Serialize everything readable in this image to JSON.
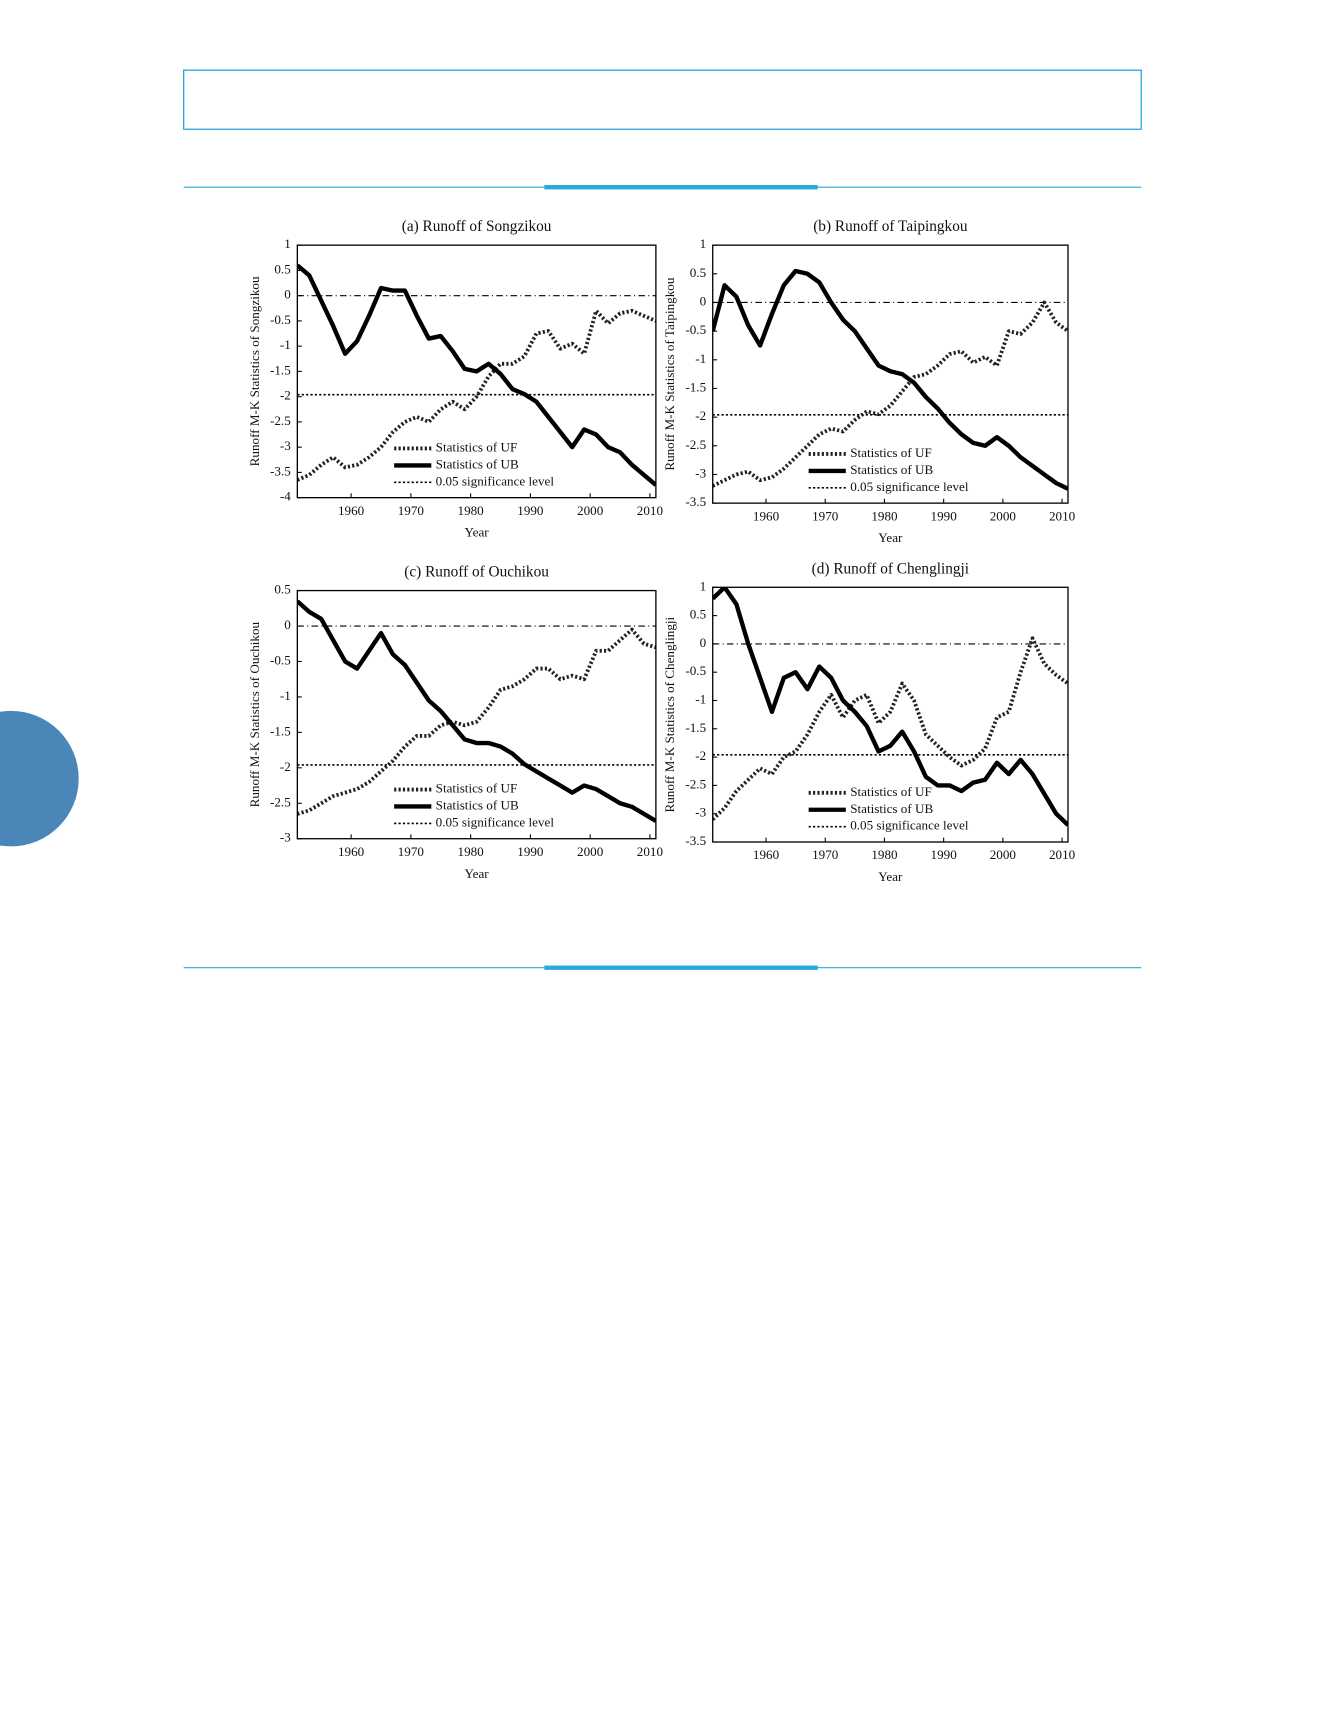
{
  "chart_data": [
    {
      "type": "line",
      "title": "(a) Runoff of Songzikou",
      "xlabel": "Year",
      "ylabel": "Runoff M-K Statistics of Songzikou",
      "x": [
        1951,
        1953,
        1955,
        1957,
        1959,
        1961,
        1963,
        1965,
        1967,
        1969,
        1971,
        1973,
        1975,
        1977,
        1979,
        1981,
        1983,
        1985,
        1987,
        1989,
        1991,
        1993,
        1995,
        1997,
        1999,
        2001,
        2003,
        2005,
        2007,
        2009,
        2011
      ],
      "series": [
        {
          "name": "Statistics of UF",
          "color": "#222222",
          "style": "dotted",
          "values": [
            -3.65,
            -3.55,
            -3.35,
            -3.2,
            -3.4,
            -3.35,
            -3.2,
            -3.0,
            -2.7,
            -2.5,
            -2.4,
            -2.5,
            -2.25,
            -2.1,
            -2.25,
            -2.0,
            -1.6,
            -1.35,
            -1.35,
            -1.2,
            -0.75,
            -0.7,
            -1.05,
            -0.95,
            -1.15,
            -0.3,
            -0.55,
            -0.35,
            -0.3,
            -0.4,
            -0.5
          ]
        },
        {
          "name": "Statistics of UB",
          "color": "#000000",
          "style": "solid",
          "values": [
            0.6,
            0.4,
            -0.1,
            -0.6,
            -1.15,
            -0.9,
            -0.4,
            0.15,
            0.1,
            0.1,
            -0.4,
            -0.85,
            -0.8,
            -1.1,
            -1.45,
            -1.5,
            -1.35,
            -1.55,
            -1.85,
            -1.95,
            -2.1,
            -2.4,
            -2.7,
            -3.0,
            -2.65,
            -2.75,
            -3.0,
            -3.1,
            -3.35,
            -3.55,
            -3.75
          ]
        }
      ],
      "hlines": [
        {
          "name": "0.05 significance level",
          "value": -1.96,
          "style": "dotted"
        },
        {
          "value": 0,
          "style": "dashdot"
        }
      ],
      "xlim": [
        1951,
        2011
      ],
      "ylim": [
        -4,
        1
      ],
      "xticks": [
        1960,
        1970,
        1980,
        1990,
        2000,
        2010
      ],
      "yticks": [
        1,
        0.5,
        0,
        -0.5,
        -1,
        -1.5,
        -2,
        -2.5,
        -3,
        -3.5,
        -4
      ],
      "legend": "lower center"
    },
    {
      "type": "line",
      "title": "(b) Runoff of Taipingkou",
      "xlabel": "Year",
      "ylabel": "Runoff M-K Statistics of Taipingkou",
      "x": [
        1951,
        1953,
        1955,
        1957,
        1959,
        1961,
        1963,
        1965,
        1967,
        1969,
        1971,
        1973,
        1975,
        1977,
        1979,
        1981,
        1983,
        1985,
        1987,
        1989,
        1991,
        1993,
        1995,
        1997,
        1999,
        2001,
        2003,
        2005,
        2007,
        2009,
        2011
      ],
      "series": [
        {
          "name": "Statistics of UF",
          "color": "#222222",
          "style": "dotted",
          "values": [
            -3.2,
            -3.1,
            -3.0,
            -2.95,
            -3.1,
            -3.05,
            -2.9,
            -2.7,
            -2.5,
            -2.3,
            -2.2,
            -2.25,
            -2.05,
            -1.9,
            -1.95,
            -1.8,
            -1.55,
            -1.3,
            -1.25,
            -1.1,
            -0.9,
            -0.85,
            -1.05,
            -0.95,
            -1.1,
            -0.5,
            -0.55,
            -0.35,
            0.0,
            -0.35,
            -0.5
          ]
        },
        {
          "name": "Statistics of UB",
          "color": "#000000",
          "style": "solid",
          "values": [
            -0.5,
            0.3,
            0.1,
            -0.4,
            -0.75,
            -0.2,
            0.3,
            0.55,
            0.5,
            0.35,
            0.0,
            -0.3,
            -0.5,
            -0.8,
            -1.1,
            -1.2,
            -1.25,
            -1.4,
            -1.65,
            -1.85,
            -2.1,
            -2.3,
            -2.45,
            -2.5,
            -2.35,
            -2.5,
            -2.7,
            -2.85,
            -3.0,
            -3.15,
            -3.25
          ]
        }
      ],
      "hlines": [
        {
          "name": "0.05 significance level",
          "value": -1.96,
          "style": "dotted"
        },
        {
          "value": 0,
          "style": "dashdot"
        }
      ],
      "xlim": [
        1951,
        2011
      ],
      "ylim": [
        -3.5,
        1
      ],
      "xticks": [
        1960,
        1970,
        1980,
        1990,
        2000,
        2010
      ],
      "yticks": [
        1,
        0.5,
        0,
        -0.5,
        -1,
        -1.5,
        -2,
        -2.5,
        -3,
        -3.5
      ],
      "legend": "lower center"
    },
    {
      "type": "line",
      "title": "(c) Runoff of Ouchikou",
      "xlabel": "Year",
      "ylabel": "Runoff M-K Statistics of Ouchikou",
      "x": [
        1951,
        1953,
        1955,
        1957,
        1959,
        1961,
        1963,
        1965,
        1967,
        1969,
        1971,
        1973,
        1975,
        1977,
        1979,
        1981,
        1983,
        1985,
        1987,
        1989,
        1991,
        1993,
        1995,
        1997,
        1999,
        2001,
        2003,
        2005,
        2007,
        2009,
        2011
      ],
      "series": [
        {
          "name": "Statistics of UF",
          "color": "#222222",
          "style": "dotted",
          "values": [
            -2.65,
            -2.6,
            -2.5,
            -2.4,
            -2.35,
            -2.3,
            -2.2,
            -2.05,
            -1.9,
            -1.7,
            -1.55,
            -1.55,
            -1.4,
            -1.35,
            -1.4,
            -1.35,
            -1.15,
            -0.9,
            -0.85,
            -0.75,
            -0.6,
            -0.6,
            -0.75,
            -0.7,
            -0.75,
            -0.35,
            -0.35,
            -0.2,
            -0.05,
            -0.25,
            -0.3
          ]
        },
        {
          "name": "Statistics of UB",
          "color": "#000000",
          "style": "solid",
          "values": [
            0.35,
            0.2,
            0.1,
            -0.2,
            -0.5,
            -0.6,
            -0.35,
            -0.1,
            -0.4,
            -0.55,
            -0.8,
            -1.05,
            -1.2,
            -1.4,
            -1.6,
            -1.65,
            -1.65,
            -1.7,
            -1.8,
            -1.95,
            -2.05,
            -2.15,
            -2.25,
            -2.35,
            -2.25,
            -2.3,
            -2.4,
            -2.5,
            -2.55,
            -2.65,
            -2.75
          ]
        }
      ],
      "hlines": [
        {
          "name": "0.05 significance level",
          "value": -1.96,
          "style": "dotted"
        },
        {
          "value": 0,
          "style": "dashdot"
        }
      ],
      "xlim": [
        1951,
        2011
      ],
      "ylim": [
        -3,
        0.5
      ],
      "xticks": [
        1960,
        1970,
        1980,
        1990,
        2000,
        2010
      ],
      "yticks": [
        0.5,
        0,
        -0.5,
        -1,
        -1.5,
        -2,
        -2.5,
        -3
      ],
      "legend": "lower center"
    },
    {
      "type": "line",
      "title": "(d) Runoff of Chenglingji",
      "xlabel": "Year",
      "ylabel": "Runoff M-K Statistics of Chenglingji",
      "x": [
        1951,
        1953,
        1955,
        1957,
        1959,
        1961,
        1963,
        1965,
        1967,
        1969,
        1971,
        1973,
        1975,
        1977,
        1979,
        1981,
        1983,
        1985,
        1987,
        1989,
        1991,
        1993,
        1995,
        1997,
        1999,
        2001,
        2003,
        2005,
        2007,
        2009,
        2011
      ],
      "series": [
        {
          "name": "Statistics of UF",
          "color": "#222222",
          "style": "dotted",
          "values": [
            -3.1,
            -2.9,
            -2.6,
            -2.4,
            -2.2,
            -2.3,
            -2.0,
            -1.9,
            -1.6,
            -1.2,
            -0.9,
            -1.3,
            -1.0,
            -0.9,
            -1.4,
            -1.2,
            -0.7,
            -1.0,
            -1.6,
            -1.8,
            -2.0,
            -2.15,
            -2.05,
            -1.85,
            -1.3,
            -1.2,
            -0.5,
            0.1,
            -0.35,
            -0.55,
            -0.7
          ]
        },
        {
          "name": "Statistics of UB",
          "color": "#000000",
          "style": "solid",
          "values": [
            0.8,
            1.0,
            0.7,
            0.0,
            -0.6,
            -1.2,
            -0.6,
            -0.5,
            -0.8,
            -0.4,
            -0.6,
            -1.0,
            -1.2,
            -1.45,
            -1.9,
            -1.8,
            -1.55,
            -1.9,
            -2.35,
            -2.5,
            -2.5,
            -2.6,
            -2.45,
            -2.4,
            -2.1,
            -2.3,
            -2.05,
            -2.3,
            -2.65,
            -3.0,
            -3.2
          ]
        }
      ],
      "hlines": [
        {
          "name": "0.05 significance level",
          "value": -1.96,
          "style": "dotted"
        },
        {
          "value": 0,
          "style": "dashdot"
        }
      ],
      "xlim": [
        1951,
        2011
      ],
      "ylim": [
        -3.5,
        1
      ],
      "xticks": [
        1960,
        1970,
        1980,
        1990,
        2000,
        2010
      ],
      "yticks": [
        1,
        0.5,
        0,
        -0.5,
        -1,
        -1.5,
        -2,
        -2.5,
        -3,
        -3.5
      ],
      "legend": "lower center"
    }
  ]
}
